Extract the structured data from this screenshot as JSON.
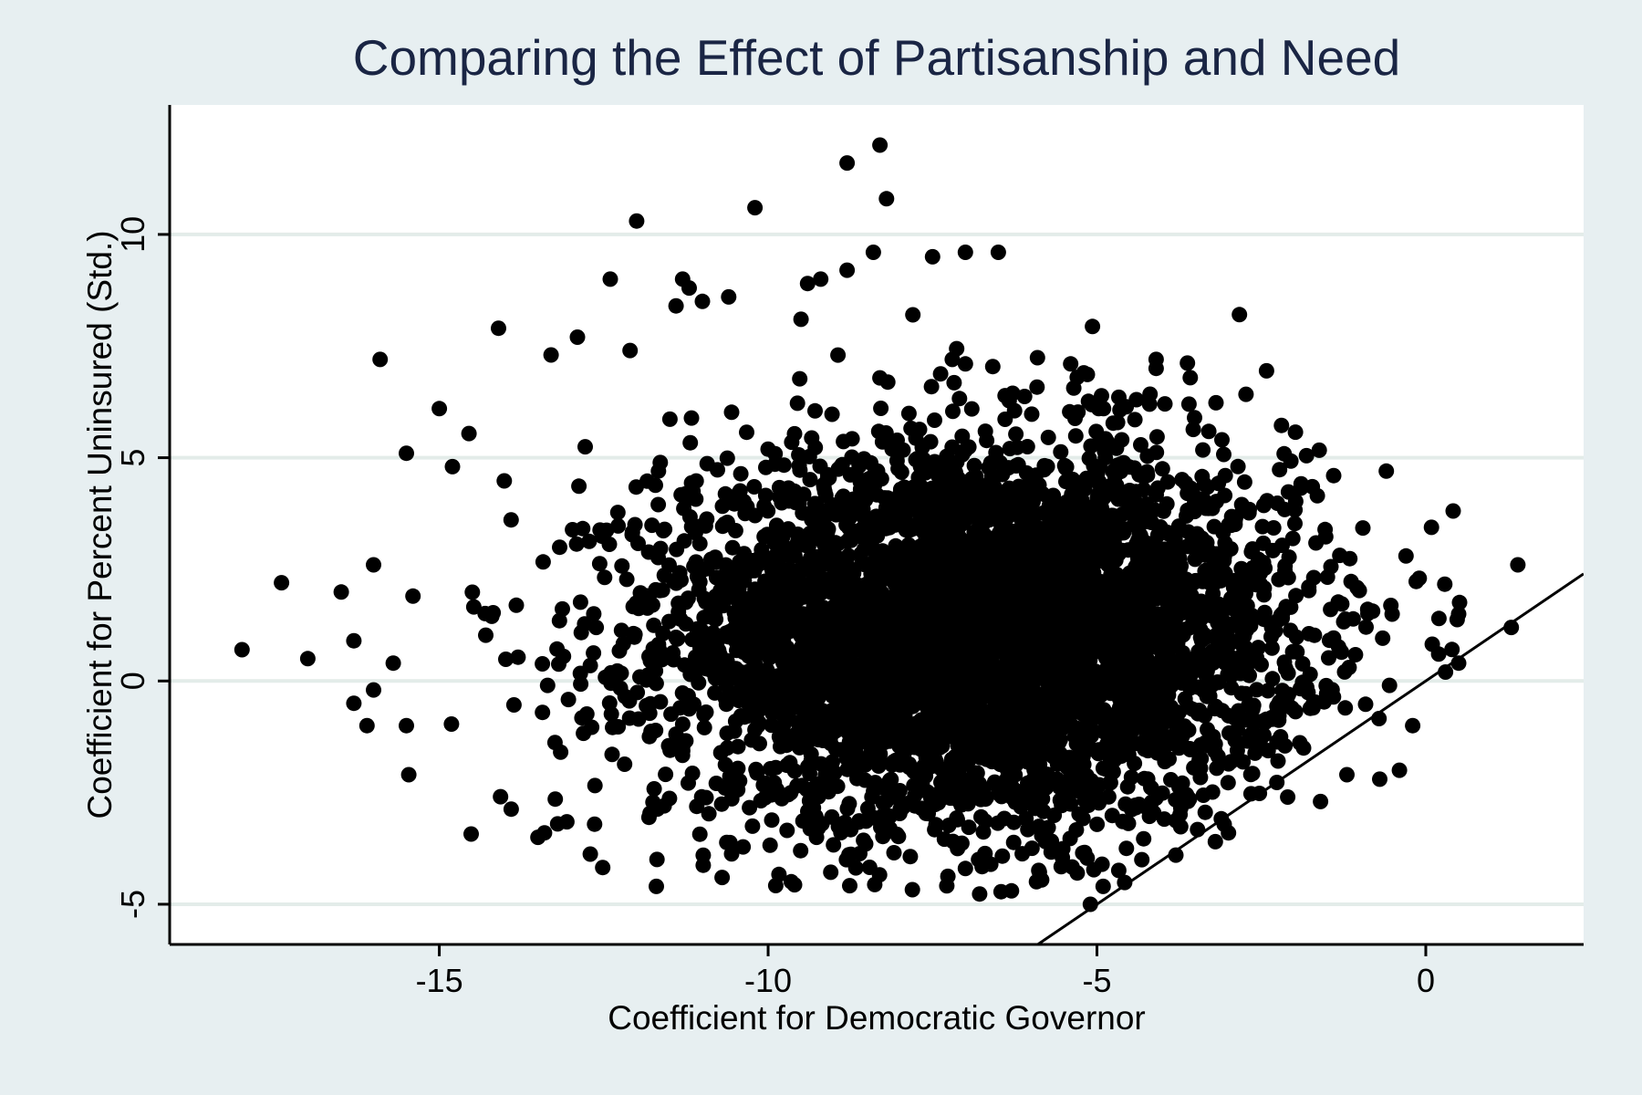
{
  "chart_data": {
    "type": "scatter",
    "title": "Comparing the Effect of Partisanship and Need",
    "xlabel": "Coefficient for Democratic Governor",
    "ylabel": "Coefficient for Percent Uninsured (Std.)",
    "xlim": [
      -19.1,
      2.4
    ],
    "ylim": [
      -5.9,
      12.9
    ],
    "x_ticks": [
      {
        "value": -15,
        "label": "-15"
      },
      {
        "value": -10,
        "label": "-10"
      },
      {
        "value": -5,
        "label": "-5"
      },
      {
        "value": 0,
        "label": "0"
      }
    ],
    "y_ticks": [
      {
        "value": -5,
        "label": "-5"
      },
      {
        "value": 0,
        "label": "0"
      },
      {
        "value": 5,
        "label": "5"
      },
      {
        "value": 10,
        "label": "10"
      }
    ],
    "grid": true,
    "legend": "none",
    "reference_line": {
      "type": "y=x",
      "label": ""
    },
    "marker_color": "#000000",
    "background_color": "#e7eff1",
    "plot_background_color": "#ffffff",
    "title_color": "#1a2544",
    "point_cloud_estimate": {
      "x_mean": -6.8,
      "x_sd": 2.4,
      "y_mean": 1.0,
      "y_sd": 2.1,
      "n_points": 5000
    },
    "points": [
      [
        -8.3,
        12.0
      ],
      [
        -8.8,
        11.6
      ],
      [
        -8.2,
        10.8
      ],
      [
        -10.2,
        10.6
      ],
      [
        -12.0,
        10.3
      ],
      [
        -8.4,
        9.6
      ],
      [
        -7.5,
        9.5
      ],
      [
        -7.0,
        9.6
      ],
      [
        -6.5,
        9.6
      ],
      [
        -9.2,
        9.0
      ],
      [
        -9.4,
        8.9
      ],
      [
        -8.8,
        9.2
      ],
      [
        -11.3,
        9.0
      ],
      [
        -11.2,
        8.8
      ],
      [
        -12.4,
        9.0
      ],
      [
        -11.4,
        8.4
      ],
      [
        -10.6,
        8.6
      ],
      [
        -11.0,
        8.5
      ],
      [
        -9.5,
        8.1
      ],
      [
        -7.8,
        8.2
      ],
      [
        -14.1,
        7.9
      ],
      [
        -15.9,
        7.2
      ],
      [
        -15.0,
        6.1
      ],
      [
        -15.5,
        5.1
      ],
      [
        -14.8,
        4.8
      ],
      [
        -17.4,
        2.2
      ],
      [
        -18.0,
        0.7
      ],
      [
        -17.0,
        0.5
      ],
      [
        -16.3,
        0.9
      ],
      [
        -16.0,
        2.6
      ],
      [
        -16.3,
        -0.5
      ],
      [
        -16.0,
        -0.2
      ],
      [
        -16.1,
        -1.0
      ],
      [
        -15.5,
        -1.0
      ],
      [
        -15.4,
        1.9
      ],
      [
        -15.7,
        0.4
      ],
      [
        -11.7,
        -4.6
      ],
      [
        -10.7,
        -4.4
      ],
      [
        -6.3,
        -4.7
      ],
      [
        -5.1,
        -5.0
      ],
      [
        -5.3,
        -4.3
      ],
      [
        -3.8,
        -3.9
      ],
      [
        -13.4,
        -3.4
      ],
      [
        -13.5,
        -3.5
      ],
      [
        -13.2,
        -3.2
      ],
      [
        1.4,
        2.6
      ],
      [
        1.3,
        1.2
      ],
      [
        0.5,
        1.5
      ],
      [
        0.2,
        1.4
      ],
      [
        0.5,
        0.4
      ],
      [
        0.3,
        0.2
      ],
      [
        -0.1,
        2.3
      ],
      [
        -0.3,
        2.8
      ],
      [
        -0.6,
        4.7
      ],
      [
        -1.4,
        4.6
      ],
      [
        -3.1,
        5.4
      ],
      [
        -4.1,
        7.2
      ],
      [
        -4.1,
        7.0
      ],
      [
        -5.3,
        6.8
      ],
      [
        -5.2,
        6.9
      ],
      [
        -5.4,
        7.1
      ],
      [
        -4.4,
        6.3
      ],
      [
        -4.2,
        6.2
      ],
      [
        -3.6,
        6.2
      ],
      [
        -4.9,
        6.1
      ],
      [
        -7.0,
        7.1
      ],
      [
        -7.2,
        7.2
      ],
      [
        -12.1,
        7.4
      ],
      [
        -12.9,
        7.7
      ],
      [
        -13.3,
        7.3
      ],
      [
        -0.2,
        -1.0
      ],
      [
        -0.4,
        -2.0
      ],
      [
        -0.7,
        -2.2
      ],
      [
        -1.2,
        -2.1
      ],
      [
        -1.6,
        -2.7
      ],
      [
        -2.1,
        -2.6
      ],
      [
        -3.0,
        -3.4
      ],
      [
        -3.2,
        -3.6
      ],
      [
        -6.8,
        -4.0
      ],
      [
        -7.0,
        -4.2
      ]
    ]
  }
}
